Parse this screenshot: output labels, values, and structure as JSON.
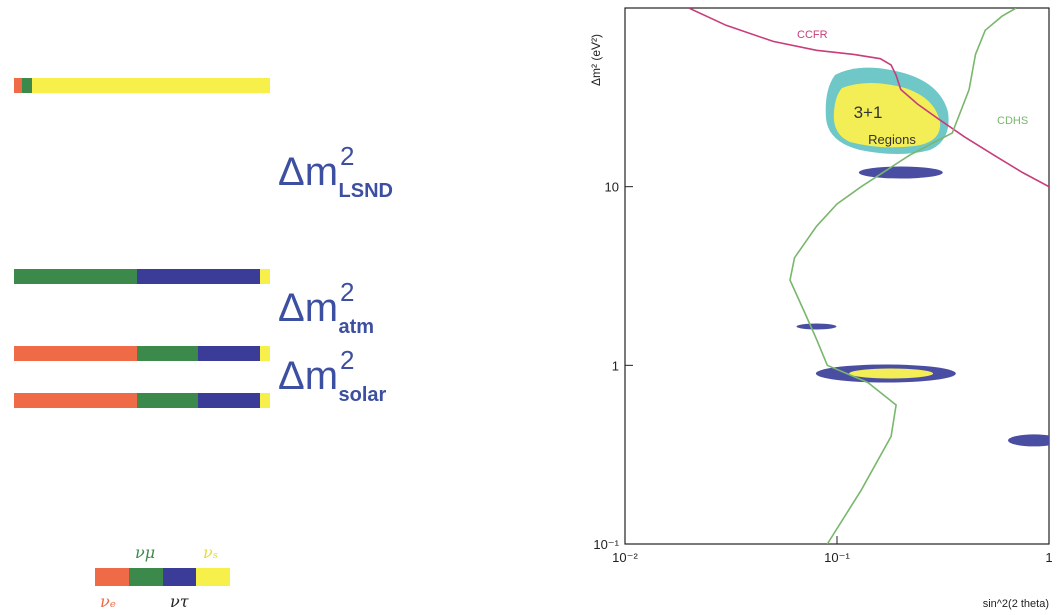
{
  "colors": {
    "nu_e": "#ef6a47",
    "nu_mu": "#3b8a4c",
    "nu_tau": "#3b3c98",
    "nu_s": "#f7f04a",
    "label": "#3d4fa0"
  },
  "mass_spectrum": {
    "splittings": [
      {
        "base": "Δm",
        "power": "2",
        "sub": "LSND"
      },
      {
        "base": "Δm",
        "power": "2",
        "sub": "atm"
      },
      {
        "base": "Δm",
        "power": "2",
        "sub": "solar"
      }
    ],
    "levels": [
      {
        "flavor_fractions": [
          0.03,
          0.04,
          0.0,
          0.93
        ]
      },
      {
        "flavor_fractions": [
          0.0,
          0.48,
          0.48,
          0.04
        ]
      },
      {
        "flavor_fractions": [
          0.48,
          0.24,
          0.24,
          0.04
        ]
      },
      {
        "flavor_fractions": [
          0.48,
          0.24,
          0.24,
          0.04
        ]
      }
    ]
  },
  "legend": {
    "nu_e": "νₑ",
    "nu_mu": "νμ",
    "nu_tau": "ντ",
    "nu_s": "νₛ"
  },
  "chart_data": {
    "type": "scatter",
    "xlabel": "sin^2(2 theta)",
    "ylabel": "Δm² (eV²)",
    "x_scale": "log",
    "y_scale": "log",
    "xlim": [
      0.01,
      1
    ],
    "ylim": [
      0.1,
      100
    ],
    "x_ticks": [
      {
        "value": 0.01,
        "label": "10⁻²"
      },
      {
        "value": 0.1,
        "label": "10⁻¹"
      },
      {
        "value": 1,
        "label": "1"
      }
    ],
    "y_ticks": [
      {
        "value": 0.1,
        "label": "10⁻¹"
      },
      {
        "value": 1,
        "label": "1"
      },
      {
        "value": 10,
        "label": "10"
      }
    ],
    "series": [
      {
        "name": "CCFR",
        "color": "#c83d7a",
        "points": [
          [
            0.02,
            100
          ],
          [
            0.03,
            80
          ],
          [
            0.05,
            65
          ],
          [
            0.08,
            58
          ],
          [
            0.12,
            55
          ],
          [
            0.16,
            52
          ],
          [
            0.18,
            48
          ],
          [
            0.19,
            42
          ],
          [
            0.2,
            35
          ],
          [
            0.24,
            29
          ],
          [
            0.3,
            24
          ],
          [
            0.4,
            19
          ],
          [
            0.55,
            15
          ],
          [
            0.75,
            12
          ],
          [
            1,
            10
          ]
        ]
      },
      {
        "name": "CDHS",
        "color": "#79b76c",
        "points": [
          [
            0.09,
            0.1
          ],
          [
            0.13,
            0.2
          ],
          [
            0.18,
            0.4
          ],
          [
            0.19,
            0.6
          ],
          [
            0.14,
            0.8
          ],
          [
            0.09,
            1.0
          ],
          [
            0.08,
            1.4
          ],
          [
            0.07,
            2.0
          ],
          [
            0.06,
            3.0
          ],
          [
            0.063,
            4.0
          ],
          [
            0.08,
            6.0
          ],
          [
            0.1,
            8.0
          ],
          [
            0.13,
            10
          ],
          [
            0.22,
            15
          ],
          [
            0.35,
            20
          ],
          [
            0.42,
            35
          ],
          [
            0.45,
            55
          ],
          [
            0.5,
            75
          ],
          [
            0.6,
            90
          ],
          [
            0.7,
            100
          ]
        ]
      }
    ],
    "annotations": [
      "CCFR",
      "CDHS",
      "3+1",
      "Regions"
    ]
  }
}
